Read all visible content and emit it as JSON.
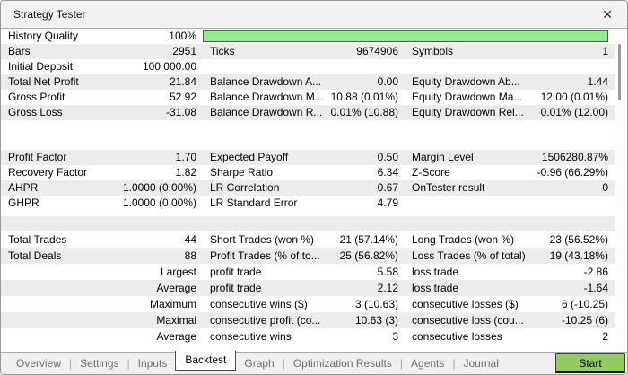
{
  "window": {
    "title": "Strategy Tester",
    "close_icon": "✕"
  },
  "colors": {
    "progress_bar_green": "#90ee90",
    "progress_bar_border": "#565656",
    "start_button_green": "#93cc60",
    "row_stripe_gray": "#ececec",
    "active_tab_border": "#4b4b4b"
  },
  "report": {
    "history_quality": {
      "label": "History Quality",
      "value": "100%",
      "percent": 100
    },
    "section1": [
      [
        [
          "Bars",
          "2951"
        ],
        [
          "Ticks",
          "9674906"
        ],
        [
          "Symbols",
          "1"
        ]
      ],
      [
        [
          "Initial Deposit",
          "100 000.00"
        ],
        [
          "",
          ""
        ],
        [
          "",
          ""
        ]
      ],
      [
        [
          "Total Net Profit",
          "21.84"
        ],
        [
          "Balance Drawdown A...",
          "0.00"
        ],
        [
          "Equity Drawdown Ab...",
          "1.44"
        ]
      ],
      [
        [
          "Gross Profit",
          "52.92"
        ],
        [
          "Balance Drawdown M...",
          "10.88 (0.01%)"
        ],
        [
          "Equity Drawdown Ma...",
          "12.00 (0.01%)"
        ]
      ],
      [
        [
          "Gross Loss",
          "-31.08"
        ],
        [
          "Balance Drawdown R...",
          "0.01% (10.88)"
        ],
        [
          "Equity Drawdown Rel...",
          "0.01% (12.00)"
        ]
      ]
    ],
    "section2": [
      [
        [
          "Profit Factor",
          "1.70"
        ],
        [
          "Expected Payoff",
          "0.50"
        ],
        [
          "Margin Level",
          "1506280.87%"
        ]
      ],
      [
        [
          "Recovery Factor",
          "1.82"
        ],
        [
          "Sharpe Ratio",
          "6.34"
        ],
        [
          "Z-Score",
          "-0.96 (66.29%)"
        ]
      ],
      [
        [
          "AHPR",
          "1.0000 (0.00%)"
        ],
        [
          "LR Correlation",
          "0.67"
        ],
        [
          "OnTester result",
          "0"
        ]
      ],
      [
        [
          "GHPR",
          "1.0000 (0.00%)"
        ],
        [
          "LR Standard Error",
          "4.79"
        ],
        [
          "",
          ""
        ]
      ]
    ],
    "section3": [
      [
        [
          "Total Trades",
          "44"
        ],
        [
          "Short Trades (won %)",
          "21 (57.14%)"
        ],
        [
          "Long Trades (won %)",
          "23 (56.52%)"
        ]
      ],
      [
        [
          "Total Deals",
          "88"
        ],
        [
          "Profit Trades (% of to...",
          "25 (56.82%)"
        ],
        [
          "Loss Trades (% of total)",
          "19 (43.18%)"
        ]
      ],
      [
        [
          "",
          "Largest"
        ],
        [
          "profit trade",
          "5.58"
        ],
        [
          "loss trade",
          "-2.86"
        ]
      ],
      [
        [
          "",
          "Average"
        ],
        [
          "profit trade",
          "2.12"
        ],
        [
          "loss trade",
          "-1.64"
        ]
      ],
      [
        [
          "",
          "Maximum"
        ],
        [
          "consecutive wins ($)",
          "3 (10.63)"
        ],
        [
          "consecutive losses ($)",
          "6 (-10.25)"
        ]
      ],
      [
        [
          "",
          "Maximal"
        ],
        [
          "consecutive profit (co...",
          "10.63 (3)"
        ],
        [
          "consecutive loss (cou...",
          "-10.25 (6)"
        ]
      ],
      [
        [
          "",
          "Average"
        ],
        [
          "consecutive wins",
          "3"
        ],
        [
          "consecutive losses",
          "2"
        ]
      ]
    ]
  },
  "tabs": [
    {
      "label": "Overview",
      "active": false
    },
    {
      "label": "Settings",
      "active": false
    },
    {
      "label": "Inputs",
      "active": false
    },
    {
      "label": "Backtest",
      "active": true
    },
    {
      "label": "Graph",
      "active": false
    },
    {
      "label": "Optimization Results",
      "active": false
    },
    {
      "label": "Agents",
      "active": false
    },
    {
      "label": "Journal",
      "active": false
    }
  ],
  "start_button": {
    "label": "Start"
  }
}
